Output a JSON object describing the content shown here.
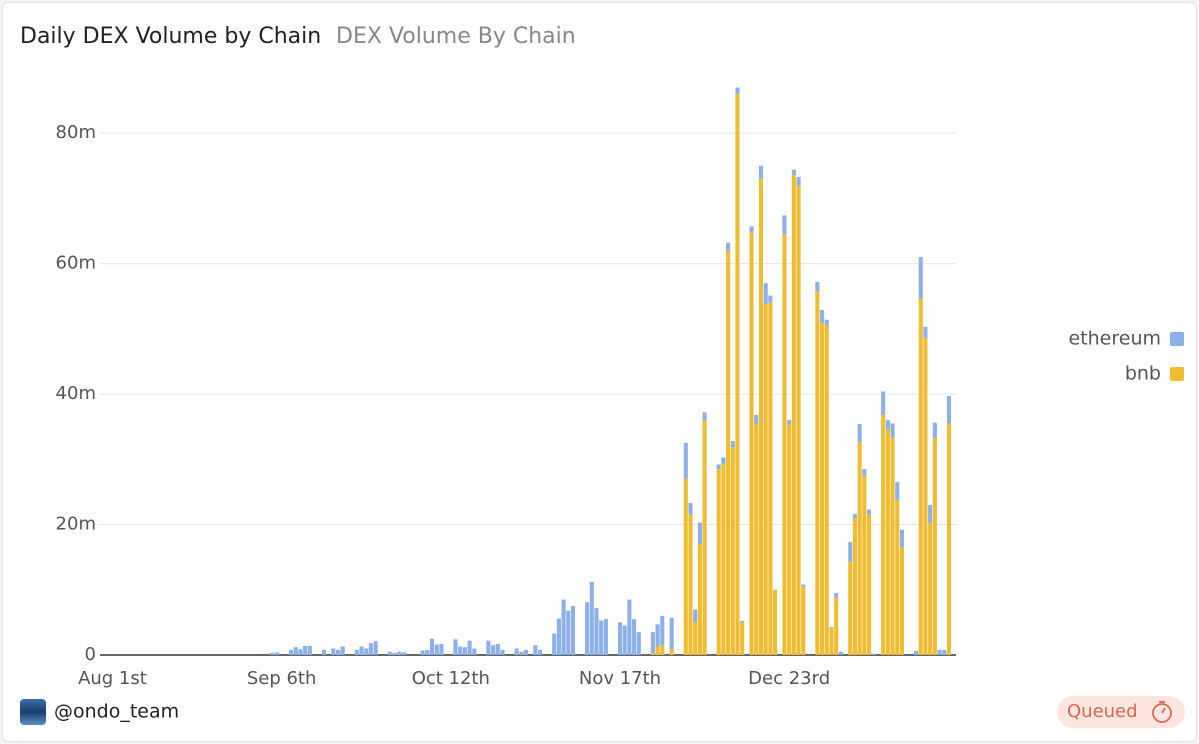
{
  "chart_data": {
    "type": "stacked-bar",
    "title": "Daily DEX Volume by Chain",
    "subtitle": "DEX Volume By Chain",
    "categories": [
      null,
      null,
      null,
      "Aug 1st",
      null,
      null,
      null,
      null,
      null,
      null,
      null,
      null,
      null,
      null,
      null,
      null,
      null,
      null,
      null,
      null,
      null,
      null,
      null,
      null,
      null,
      null,
      null,
      null,
      null,
      null,
      null,
      null,
      null,
      null,
      null,
      null,
      null,
      null,
      null,
      "Sep 6th",
      null,
      null,
      null,
      null,
      null,
      null,
      null,
      null,
      null,
      null,
      null,
      null,
      null,
      null,
      null,
      null,
      null,
      null,
      null,
      null,
      null,
      null,
      null,
      null,
      null,
      null,
      null,
      null,
      null,
      null,
      null,
      null,
      null,
      null,
      null,
      "Oct 12th",
      null,
      null,
      null,
      null,
      null,
      null,
      null,
      null,
      null,
      null,
      null,
      null,
      null,
      null,
      null,
      null,
      null,
      null,
      null,
      null,
      null,
      null,
      null,
      null,
      null,
      null,
      null,
      null,
      null,
      null,
      null,
      null,
      null,
      null,
      null,
      "Nov 17th",
      null,
      null,
      null,
      null,
      null,
      null,
      null,
      null,
      null,
      null,
      null,
      null,
      null,
      null,
      null,
      null,
      null,
      null,
      null,
      null,
      null,
      null,
      null,
      null,
      null,
      null,
      null,
      null,
      null,
      null,
      null,
      null,
      null,
      null,
      null,
      "Dec 23rd",
      null,
      null,
      null,
      null,
      null,
      null,
      null,
      null,
      null,
      null,
      null,
      null,
      null,
      null,
      null,
      null,
      null,
      null,
      null,
      null,
      null,
      null,
      null,
      null,
      null,
      null,
      null,
      null,
      null,
      null,
      null,
      null,
      null,
      null,
      null
    ],
    "series": [
      {
        "name": "ethereum",
        "color": "#8cb0e8",
        "values": [
          0,
          0,
          0,
          0,
          0,
          0,
          0,
          0,
          0,
          0,
          0,
          0,
          0,
          0,
          0,
          0,
          0,
          0,
          0,
          0,
          0,
          0,
          0,
          0,
          0,
          0,
          0,
          0,
          0,
          0,
          0,
          0,
          0,
          0,
          0,
          0,
          0,
          0.3,
          0.4,
          0,
          0,
          0.8,
          1.2,
          0.9,
          1.4,
          1.4,
          0,
          0,
          0.8,
          0,
          1.0,
          0.8,
          1.3,
          0,
          0,
          0.8,
          1.3,
          1.0,
          1.8,
          2.1,
          0,
          0,
          0.5,
          0.3,
          0.5,
          0.4,
          0,
          0,
          0,
          0.7,
          0.8,
          2.5,
          1.6,
          1.7,
          0,
          0,
          2.4,
          1.3,
          1.2,
          2.2,
          1.0,
          0,
          0,
          2.2,
          1.5,
          1.7,
          0.8,
          0,
          0,
          1.0,
          0.5,
          0.8,
          0,
          1.5,
          0.8,
          0,
          0,
          3.3,
          5.6,
          8.5,
          6.8,
          7.5,
          0,
          0,
          8.1,
          11.2,
          7.2,
          5.3,
          5.5,
          0,
          0,
          5.0,
          4.5,
          8.5,
          5.5,
          3.5,
          0,
          0,
          3.3,
          3.4,
          4.5,
          0,
          4.8,
          0,
          0,
          5.5,
          1.8,
          2,
          3.3,
          1.2,
          0,
          0,
          0.7,
          1,
          1.2,
          1,
          1,
          0.2,
          0,
          0.9,
          1.4,
          2,
          3.2,
          1.1,
          0,
          0,
          2.9,
          0.7,
          0.8,
          1.3,
          0.3,
          0,
          0,
          1.4,
          1.9,
          0.9,
          0.1,
          0.7,
          0.5,
          0,
          3,
          0.6,
          2.7,
          1,
          0.8,
          0.2,
          0,
          3.6,
          1.4,
          2.2,
          2.7,
          2.7,
          0,
          0,
          0.6,
          6.4,
          1.7,
          2.8,
          2.3,
          0.8,
          0.8,
          4.2,
          0
        ]
      },
      {
        "name": "bnb",
        "color": "#f0bc32",
        "values": [
          0,
          0,
          0,
          0,
          0,
          0,
          0,
          0,
          0,
          0,
          0,
          0,
          0,
          0,
          0,
          0,
          0,
          0,
          0,
          0,
          0,
          0,
          0,
          0,
          0,
          0,
          0,
          0,
          0,
          0,
          0,
          0,
          0,
          0,
          0,
          0,
          0,
          0,
          0,
          0,
          0,
          0,
          0,
          0,
          0,
          0,
          0,
          0,
          0,
          0,
          0,
          0,
          0,
          0,
          0,
          0,
          0,
          0,
          0,
          0,
          0,
          0,
          0,
          0,
          0,
          0,
          0,
          0,
          0,
          0,
          0,
          0,
          0,
          0,
          0,
          0,
          0,
          0,
          0,
          0,
          0,
          0,
          0,
          0,
          0,
          0,
          0,
          0,
          0,
          0,
          0,
          0,
          0,
          0,
          0,
          0,
          0,
          0,
          0,
          0,
          0,
          0,
          0,
          0,
          0,
          0,
          0,
          0,
          0,
          0,
          0,
          0,
          0,
          0,
          0,
          0,
          0,
          0,
          0.2,
          1.3,
          1.5,
          0,
          0.9,
          0,
          0,
          27,
          21.5,
          5,
          17,
          36,
          0,
          0,
          28.5,
          29.3,
          62,
          31.8,
          86,
          5,
          0,
          64.8,
          35.4,
          73,
          53.8,
          54,
          10,
          0,
          64.5,
          35.3,
          73.6,
          72,
          10.5,
          0,
          0,
          55.8,
          51,
          50.5,
          4.2,
          8.8,
          0,
          0,
          14.3,
          21,
          32.7,
          27.5,
          21.5,
          0,
          0,
          36.8,
          34.6,
          33.3,
          23.8,
          16.5,
          0,
          0,
          0,
          54.6,
          48.6,
          20.2,
          33.3,
          0,
          0,
          35.5,
          0
        ]
      }
    ],
    "ylim": [
      0,
      88
    ],
    "yticks": [
      0,
      {
        "value": 20,
        "label": "20m"
      },
      {
        "value": 40,
        "label": "40m"
      },
      {
        "value": 60,
        "label": "60m"
      },
      {
        "value": 80,
        "label": "80m"
      }
    ],
    "grid": true,
    "legend": "right"
  },
  "footer": {
    "author": "@ondo_team",
    "status": "Queued"
  }
}
